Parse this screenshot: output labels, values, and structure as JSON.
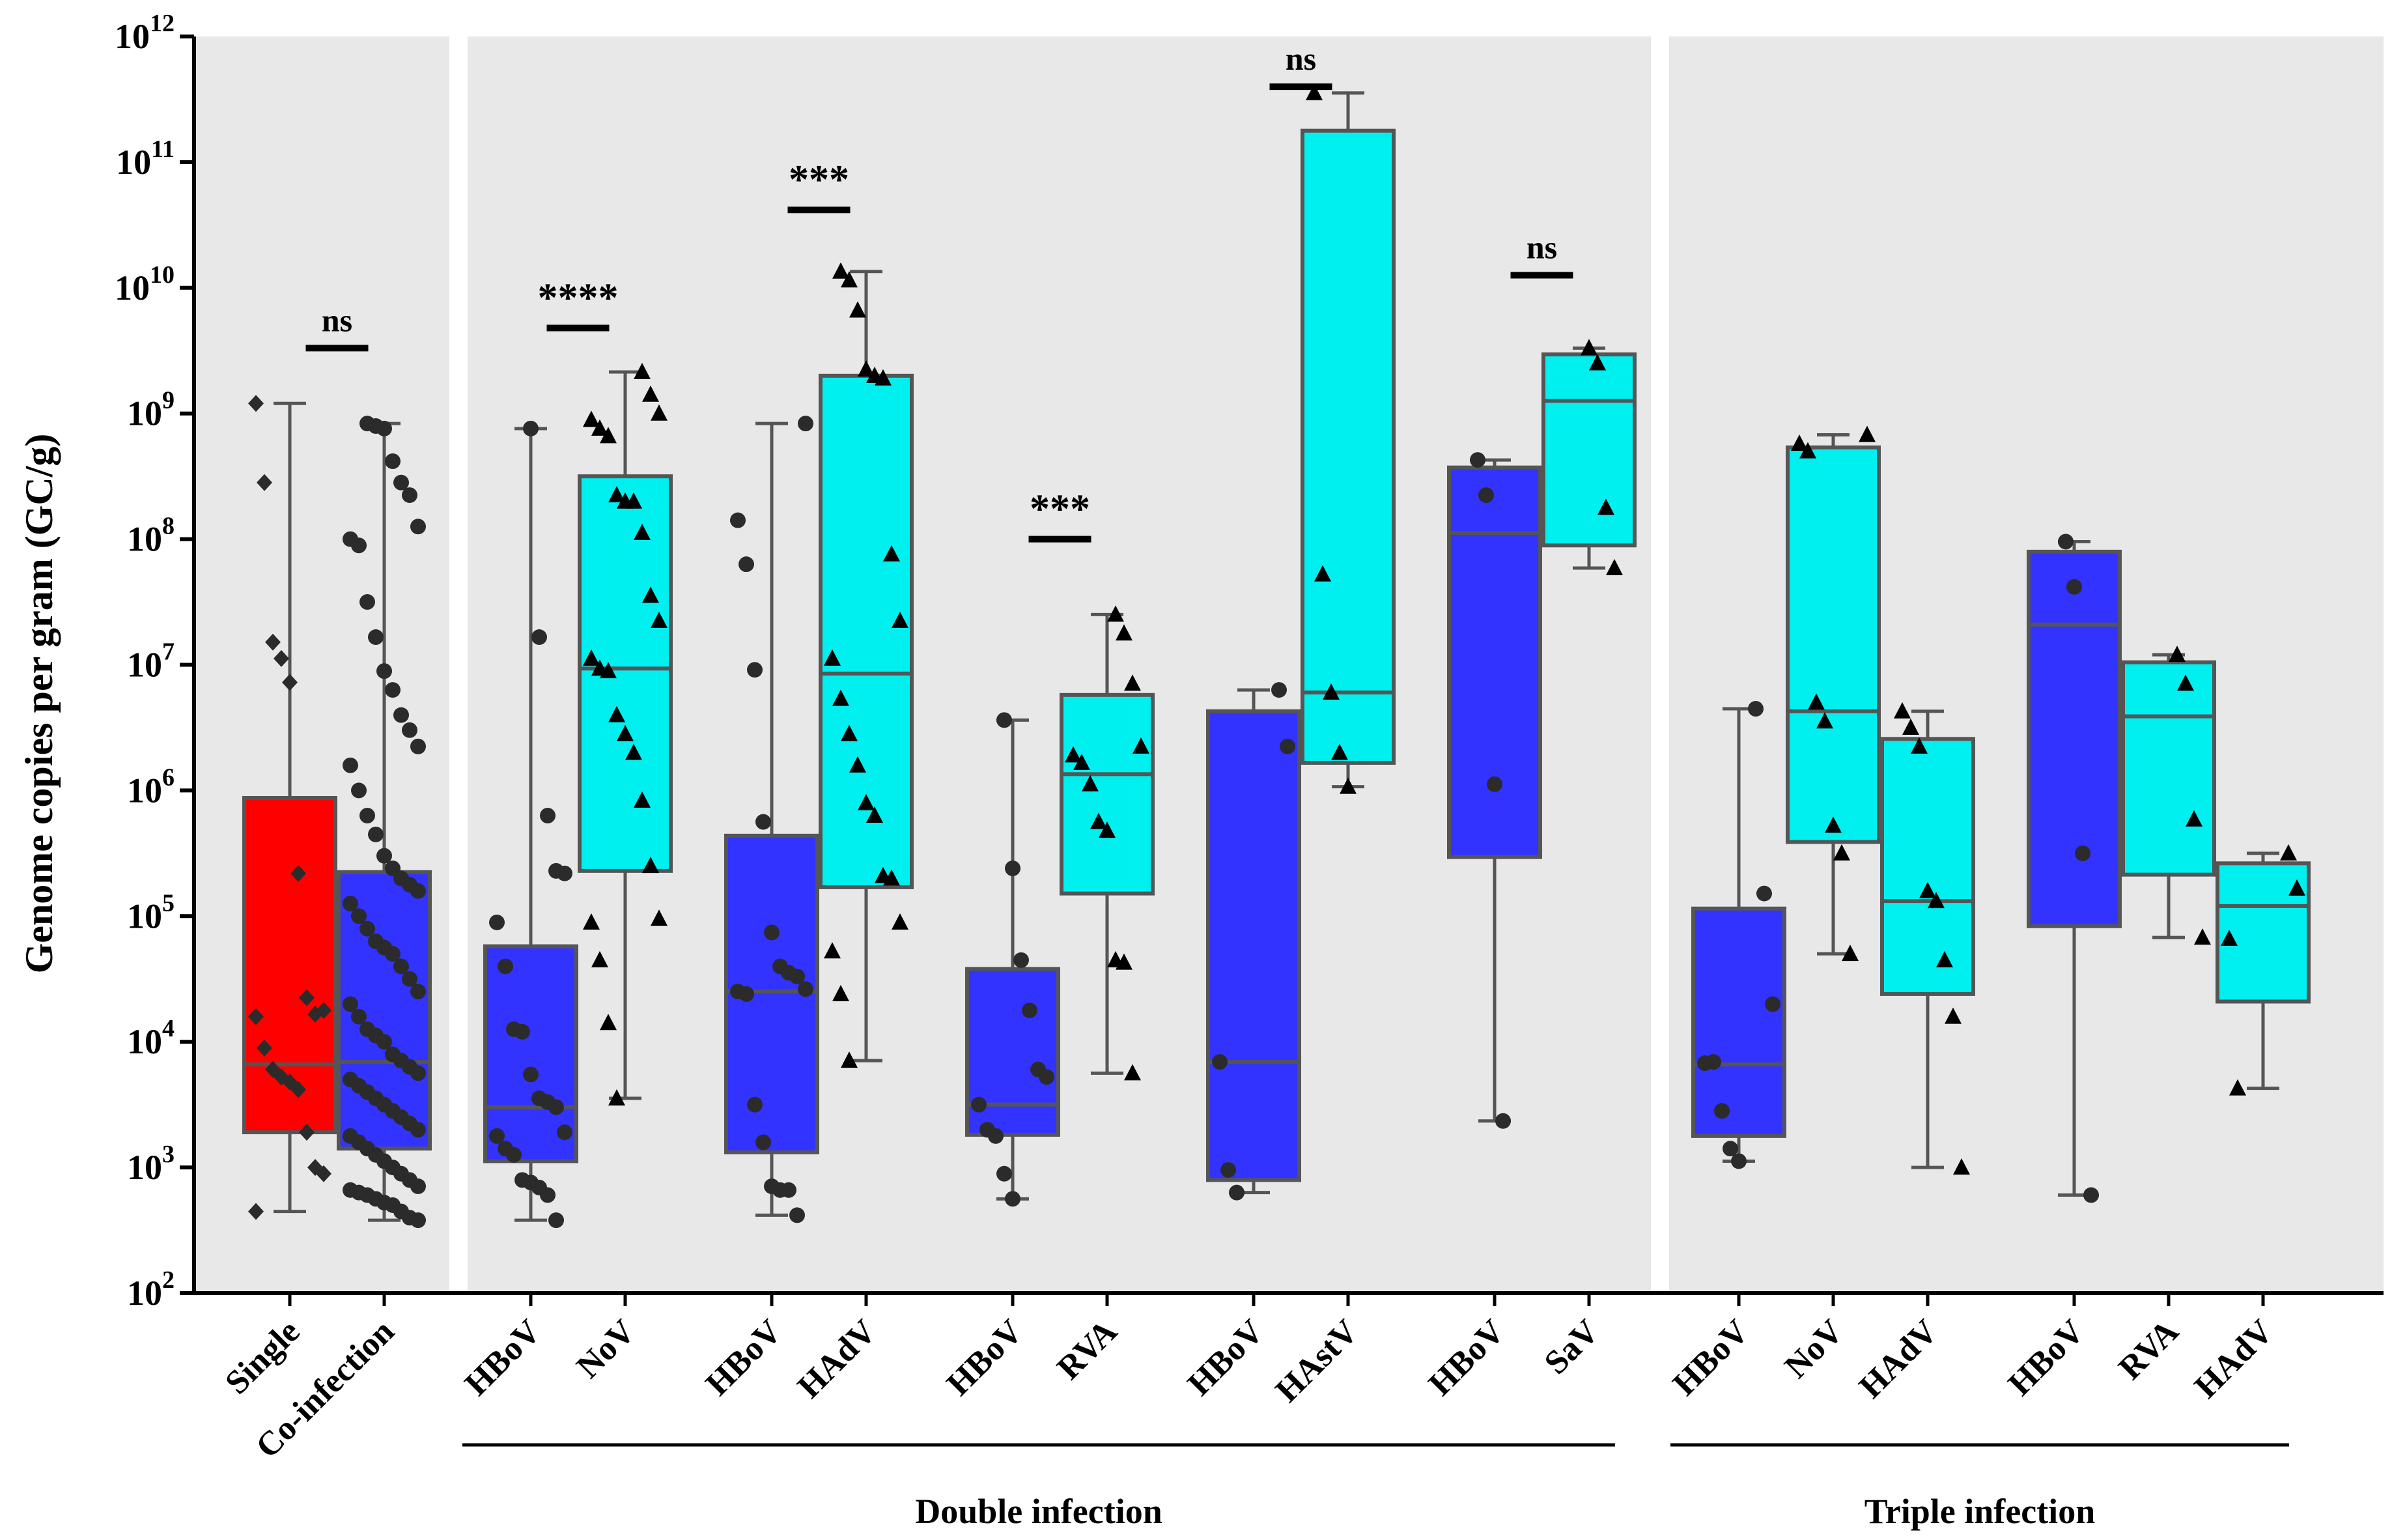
{
  "chart_data": {
    "type": "box",
    "ylabel": "Genome copies per gram (GC/g)",
    "yscale": "log10",
    "ylim_exp": [
      2,
      12
    ],
    "y_tick_exponents": [
      2,
      3,
      4,
      5,
      6,
      7,
      8,
      9,
      10,
      11,
      12
    ],
    "tick_base": "10",
    "panel_background": "#e8e8e8",
    "colors": {
      "single": "#ff0000",
      "hbov": "#3333ff",
      "partner": "#00f0f0",
      "box_edge": "#555555"
    },
    "panels": [
      {
        "categories": [
          0,
          1
        ]
      },
      {
        "categories": [
          2,
          3,
          4,
          5,
          6,
          7,
          8,
          9,
          10,
          11
        ]
      },
      {
        "categories": [
          12,
          13,
          14,
          15,
          16,
          17
        ]
      }
    ],
    "groups": [
      {
        "label": "Double infection",
        "categories": [
          2,
          11
        ]
      },
      {
        "label": "Triple infection",
        "categories": [
          12,
          17
        ]
      }
    ],
    "categories": [
      {
        "label": "Single",
        "color": "single",
        "marker": "diamond",
        "box": [
          3.28,
          3.82,
          5.94
        ],
        "whisker": [
          2.65,
          9.08
        ],
        "points": [
          9.08,
          8.45,
          7.18,
          7.05,
          6.86,
          5.34,
          4.35,
          4.22,
          4.25,
          4.2,
          3.95,
          3.78,
          3.72,
          3.68,
          3.62,
          3.28,
          3.0,
          2.95,
          2.65
        ]
      },
      {
        "label": "Co-infection",
        "color": "hbov",
        "marker": "circle",
        "box": [
          3.15,
          3.84,
          5.35
        ],
        "whisker": [
          2.58,
          8.92
        ],
        "points": [
          8.92,
          8.9,
          8.88,
          8.62,
          8.45,
          8.35,
          8.1,
          8.0,
          7.95,
          7.5,
          7.22,
          6.95,
          6.8,
          6.6,
          6.48,
          6.35,
          6.2,
          6.0,
          5.8,
          5.65,
          5.48,
          5.38,
          5.3,
          5.25,
          5.2,
          5.1,
          5.0,
          4.9,
          4.8,
          4.75,
          4.7,
          4.6,
          4.5,
          4.4,
          4.3,
          4.2,
          4.1,
          4.05,
          4.0,
          3.9,
          3.85,
          3.8,
          3.75,
          3.7,
          3.65,
          3.6,
          3.55,
          3.5,
          3.45,
          3.4,
          3.35,
          3.3,
          3.25,
          3.2,
          3.15,
          3.1,
          3.05,
          3.0,
          2.95,
          2.9,
          2.85,
          2.82,
          2.8,
          2.78,
          2.75,
          2.72,
          2.7,
          2.65,
          2.6,
          2.58
        ]
      },
      {
        "label": "HBoV",
        "color": "hbov",
        "marker": "circle",
        "box": [
          3.05,
          3.48,
          4.76
        ],
        "whisker": [
          2.58,
          8.88
        ],
        "points": [
          8.88,
          7.22,
          5.8,
          5.36,
          5.34,
          4.95,
          4.6,
          4.1,
          4.08,
          3.74,
          3.55,
          3.52,
          3.48,
          3.28,
          3.25,
          3.15,
          3.1,
          2.9,
          2.88,
          2.84,
          2.78,
          2.58
        ]
      },
      {
        "label": "NoV",
        "color": "partner",
        "marker": "triangle",
        "box": [
          5.36,
          6.97,
          8.5
        ],
        "whisker": [
          3.55,
          9.33
        ],
        "points": [
          9.33,
          9.15,
          9.0,
          8.95,
          8.88,
          8.82,
          8.35,
          8.3,
          8.3,
          8.05,
          7.55,
          7.35,
          7.05,
          6.97,
          6.95,
          6.6,
          6.45,
          6.3,
          5.92,
          5.4,
          4.98,
          4.95,
          4.65,
          4.15,
          3.55
        ]
      },
      {
        "label": "HBoV",
        "color": "hbov",
        "marker": "circle",
        "box": [
          3.12,
          4.4,
          5.64
        ],
        "whisker": [
          2.62,
          8.92
        ],
        "points": [
          8.92,
          8.15,
          7.8,
          6.96,
          5.75,
          4.87,
          4.6,
          4.55,
          4.52,
          4.42,
          4.4,
          4.38,
          3.5,
          3.2,
          2.85,
          2.82,
          2.82,
          2.62
        ]
      },
      {
        "label": "HAdV",
        "color": "partner",
        "marker": "triangle",
        "box": [
          5.23,
          6.93,
          9.3
        ],
        "whisker": [
          3.85,
          10.13
        ],
        "points": [
          10.13,
          10.06,
          9.82,
          9.35,
          9.3,
          9.28,
          7.88,
          7.35,
          7.05,
          6.73,
          6.45,
          6.2,
          5.9,
          5.8,
          5.32,
          5.3,
          4.95,
          4.72,
          4.38,
          3.85
        ]
      },
      {
        "label": "HBoV",
        "color": "hbov",
        "marker": "circle",
        "box": [
          3.26,
          3.5,
          4.58
        ],
        "whisker": [
          2.75,
          6.56
        ],
        "points": [
          6.56,
          5.38,
          4.65,
          4.25,
          3.78,
          3.72,
          3.5,
          3.3,
          3.25,
          2.95,
          2.75
        ]
      },
      {
        "label": "RVA",
        "color": "partner",
        "marker": "triangle",
        "box": [
          5.18,
          6.13,
          6.76
        ],
        "whisker": [
          3.75,
          7.4
        ],
        "points": [
          7.4,
          7.25,
          6.85,
          6.35,
          6.28,
          6.22,
          6.05,
          5.75,
          5.68,
          4.65,
          4.63,
          3.75
        ]
      },
      {
        "label": "HBoV",
        "color": "hbov",
        "marker": "circle",
        "box": [
          2.9,
          3.84,
          6.63
        ],
        "whisker": [
          2.8,
          6.8
        ],
        "points": [
          6.8,
          6.35,
          3.84,
          2.98,
          2.8
        ]
      },
      {
        "label": "HAstV",
        "color": "partner",
        "marker": "triangle",
        "box": [
          6.22,
          6.78,
          11.25
        ],
        "whisker": [
          6.03,
          11.55
        ],
        "points": [
          11.55,
          7.72,
          6.78,
          6.3,
          6.03
        ]
      },
      {
        "label": "HBoV",
        "color": "hbov",
        "marker": "circle",
        "box": [
          5.47,
          8.05,
          8.57
        ],
        "whisker": [
          3.37,
          8.63
        ],
        "points": [
          8.63,
          8.35,
          6.05,
          3.37
        ]
      },
      {
        "label": "SaV",
        "color": "partner",
        "marker": "triangle",
        "box": [
          7.95,
          9.1,
          9.47
        ],
        "whisker": [
          7.77,
          9.52
        ],
        "points": [
          9.52,
          9.4,
          8.25,
          7.77
        ]
      },
      {
        "label": "HBoV",
        "color": "hbov",
        "marker": "circle",
        "box": [
          3.25,
          3.82,
          5.06
        ],
        "whisker": [
          3.05,
          6.65
        ],
        "points": [
          6.65,
          5.18,
          4.3,
          3.83,
          3.84,
          3.45,
          3.15,
          3.05
        ]
      },
      {
        "label": "NoV",
        "color": "partner",
        "marker": "triangle",
        "box": [
          5.59,
          6.63,
          8.73
        ],
        "whisker": [
          4.7,
          8.83
        ],
        "points": [
          8.83,
          8.76,
          8.7,
          6.7,
          6.55,
          5.72,
          5.5,
          4.7
        ]
      },
      {
        "label": "HAdV",
        "color": "partner",
        "marker": "triangle",
        "box": [
          4.38,
          5.12,
          6.41
        ],
        "whisker": [
          3.0,
          6.63
        ],
        "points": [
          6.63,
          6.5,
          6.35,
          5.2,
          5.12,
          4.65,
          4.2,
          3.0
        ]
      },
      {
        "label": "HBoV",
        "color": "hbov",
        "marker": "circle",
        "box": [
          4.92,
          7.32,
          7.9
        ],
        "whisker": [
          2.78,
          7.98
        ],
        "points": [
          7.98,
          7.62,
          5.5,
          2.78
        ]
      },
      {
        "label": "RVA",
        "color": "partner",
        "marker": "triangle",
        "box": [
          5.33,
          6.59,
          7.02
        ],
        "whisker": [
          4.83,
          7.08
        ],
        "points": [
          7.08,
          6.85,
          5.77,
          4.83
        ]
      },
      {
        "label": "HAdV",
        "color": "partner",
        "marker": "triangle",
        "box": [
          4.32,
          5.08,
          5.42
        ],
        "whisker": [
          3.63,
          5.5
        ],
        "points": [
          5.5,
          5.22,
          4.82,
          3.63
        ]
      }
    ],
    "significance": [
      {
        "label": "ns",
        "categories": [
          0,
          1
        ],
        "y_exp": 9.52
      },
      {
        "label": "****",
        "categories": [
          2,
          3
        ],
        "y_exp": 9.68
      },
      {
        "label": "***",
        "categories": [
          4,
          5
        ],
        "y_exp": 10.62
      },
      {
        "label": "***",
        "categories": [
          6,
          7
        ],
        "y_exp": 8.0
      },
      {
        "label": "ns",
        "categories": [
          8,
          9
        ],
        "y_exp": 11.6
      },
      {
        "label": "ns",
        "categories": [
          10,
          11
        ],
        "y_exp": 10.1
      }
    ]
  }
}
